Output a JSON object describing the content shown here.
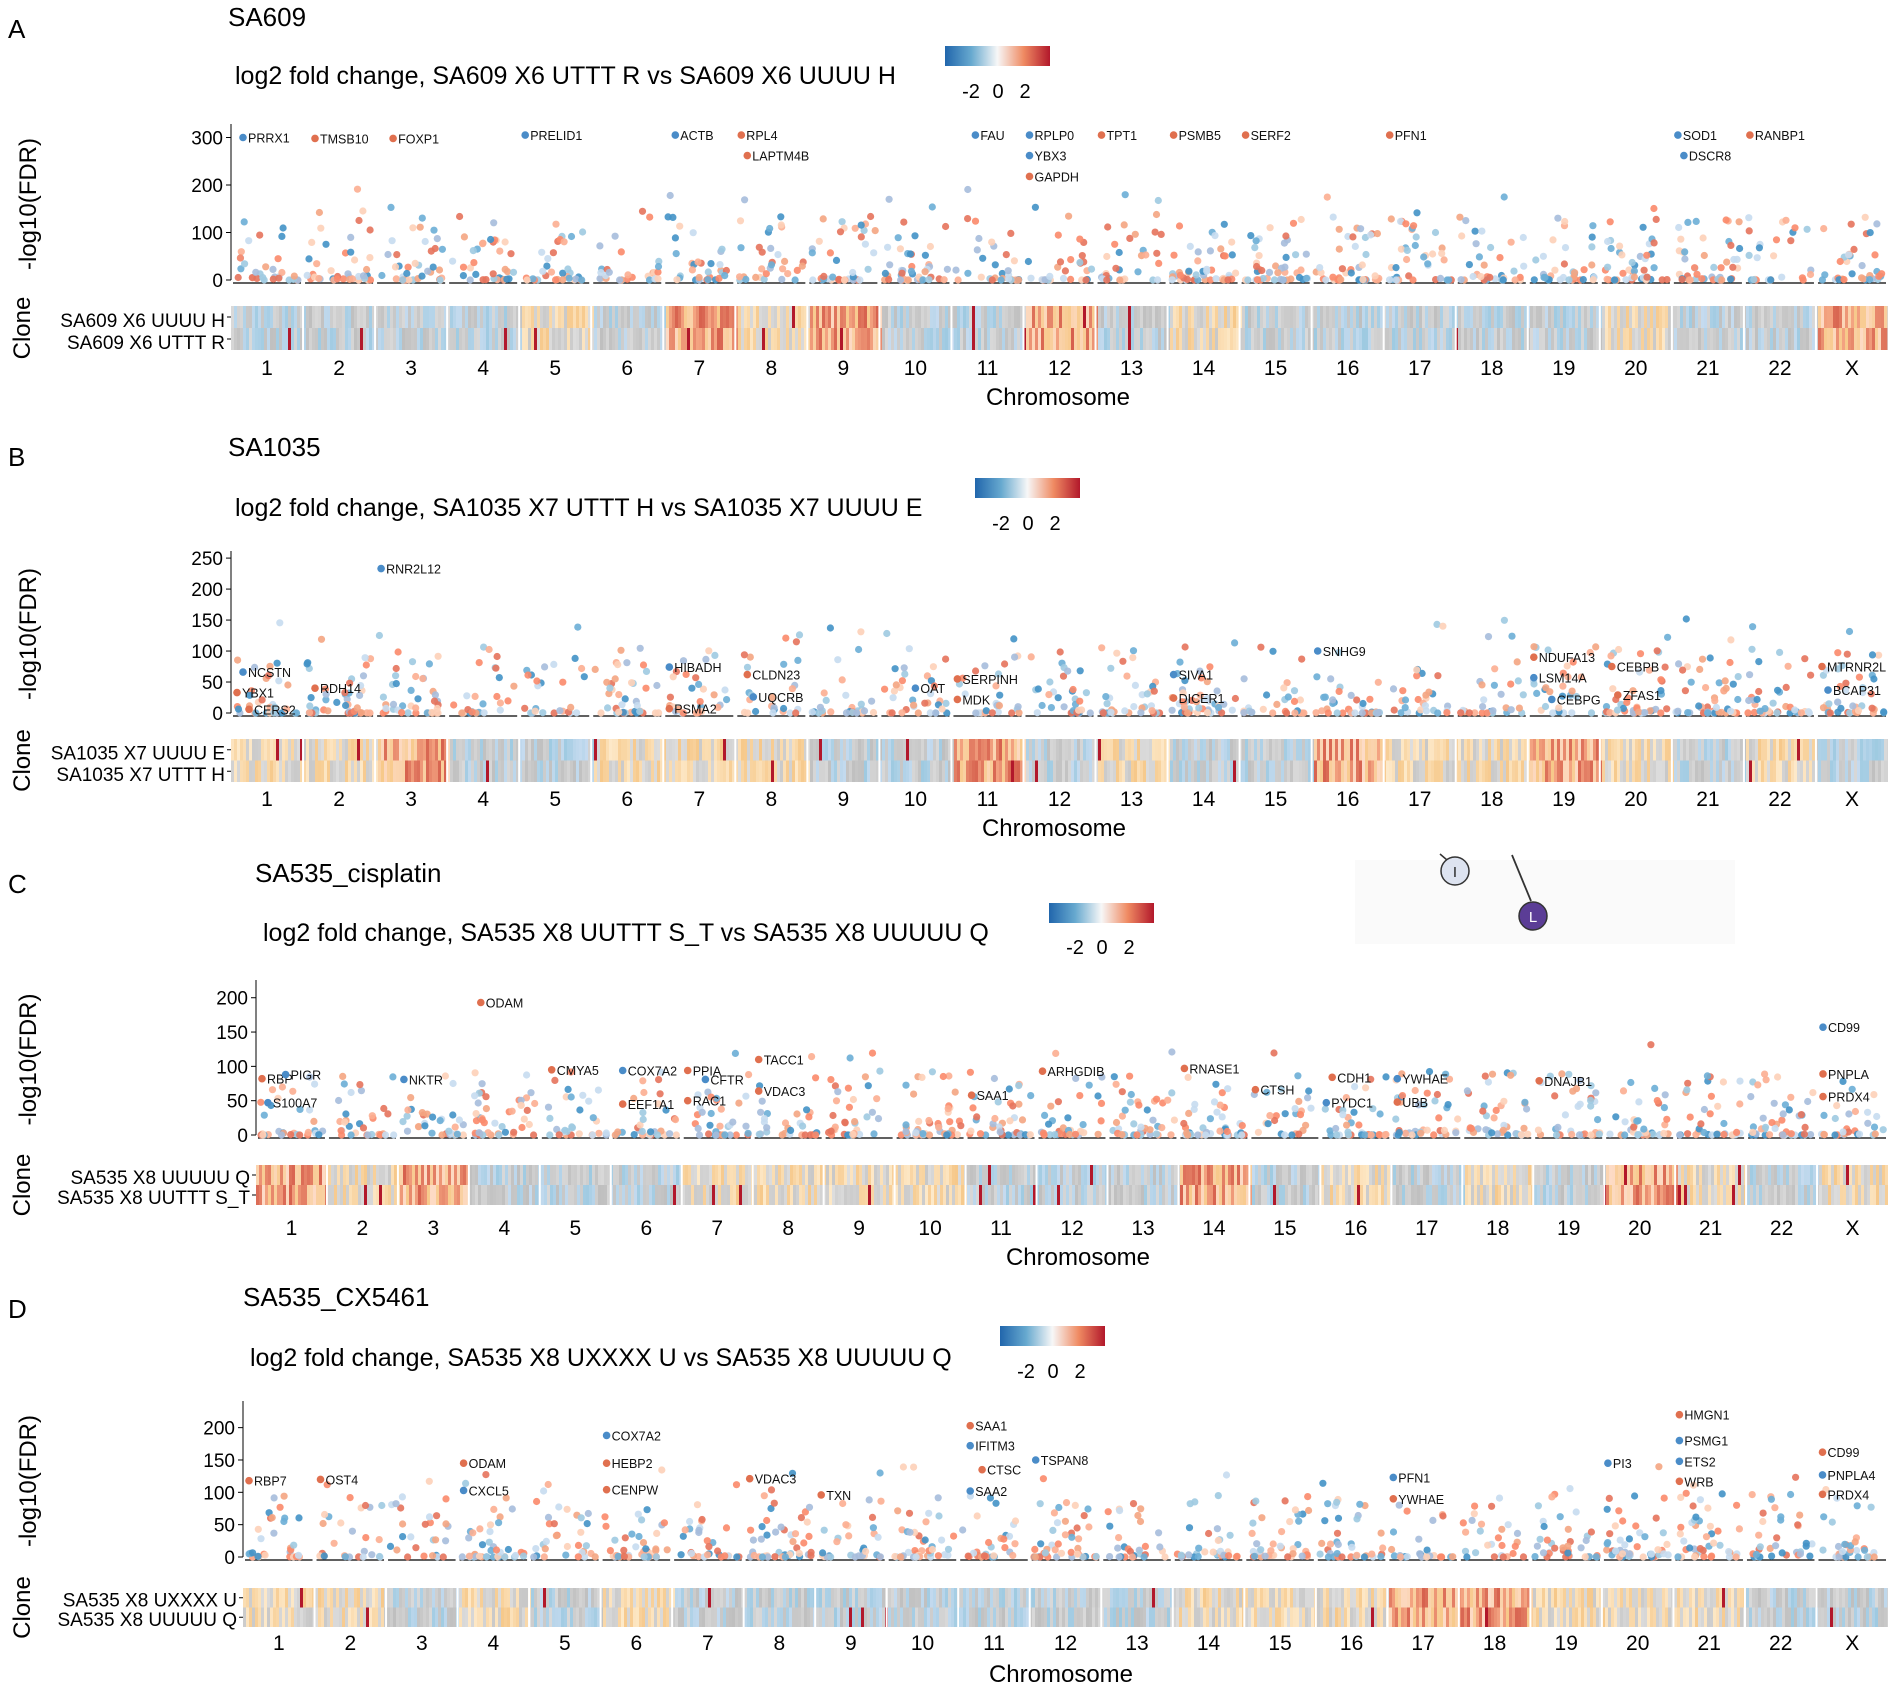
{
  "chart_data": [
    {
      "type": "scatter",
      "panel": "A",
      "title": "SA609",
      "subtitle": "log2 fold change, SA609 X6 UTTT R vs SA609 X6 UUUU H",
      "legend_ticks": [
        "-2",
        "0",
        "2"
      ],
      "ylabel": "-log10(FDR)",
      "yticks": [
        0,
        100,
        200,
        300
      ],
      "ylim": [
        0,
        320
      ],
      "xlabel": "Chromosome",
      "clone_ylabel": "Clone",
      "clones": [
        "SA609 X6 UUUU H",
        "SA609 X6 UTTT R"
      ],
      "chromosomes": [
        "1",
        "2",
        "3",
        "4",
        "5",
        "6",
        "7",
        "8",
        "9",
        "10",
        "11",
        "12",
        "13",
        "14",
        "15",
        "16",
        "17",
        "18",
        "19",
        "20",
        "21",
        "22",
        "X"
      ],
      "labels": [
        {
          "text": "PRRX1",
          "chr": 1,
          "pos": 0.1,
          "y": 300
        },
        {
          "text": "TMSB10",
          "chr": 2,
          "pos": 0.1,
          "y": 298
        },
        {
          "text": "FOXP1",
          "chr": 3,
          "pos": 0.2,
          "y": 298
        },
        {
          "text": "PRELID1",
          "chr": 5,
          "pos": 0.0,
          "y": 305
        },
        {
          "text": "ACTB",
          "chr": 7,
          "pos": 0.1,
          "y": 305
        },
        {
          "text": "RPL4",
          "chr": 8,
          "pos": 0.0,
          "y": 305
        },
        {
          "text": "LAPTM4B",
          "chr": 8,
          "pos": 0.1,
          "y": 262
        },
        {
          "text": "FAU",
          "chr": 11,
          "pos": 0.3,
          "y": 305
        },
        {
          "text": "RPLP0",
          "chr": 12,
          "pos": 0.0,
          "y": 305
        },
        {
          "text": "YBX3",
          "chr": 12,
          "pos": 0.0,
          "y": 262
        },
        {
          "text": "GAPDH",
          "chr": 12,
          "pos": 0.0,
          "y": 218
        },
        {
          "text": "TPT1",
          "chr": 13,
          "pos": 0.0,
          "y": 305
        },
        {
          "text": "PSMB5",
          "chr": 14,
          "pos": 0.0,
          "y": 305
        },
        {
          "text": "SERF2",
          "chr": 15,
          "pos": 0.0,
          "y": 305
        },
        {
          "text": "PFN1",
          "chr": 17,
          "pos": 0.0,
          "y": 305
        },
        {
          "text": "SOD1",
          "chr": 21,
          "pos": 0.0,
          "y": 305
        },
        {
          "text": "DSCR8",
          "chr": 21,
          "pos": 0.1,
          "y": 262
        },
        {
          "text": "RANBP1",
          "chr": 22,
          "pos": 0.0,
          "y": 305
        }
      ]
    },
    {
      "type": "scatter",
      "panel": "B",
      "title": "SA1035",
      "subtitle": "log2 fold change, SA1035 X7 UTTT H vs SA1035 X7 UUUU E",
      "legend_ticks": [
        "-2",
        "0",
        "2"
      ],
      "ylabel": "-log10(FDR)",
      "yticks": [
        0,
        50,
        100,
        150,
        200,
        250
      ],
      "ylim": [
        0,
        255
      ],
      "xlabel": "Chromosome",
      "clone_ylabel": "Clone",
      "clones": [
        "SA1035 X7 UUUU E",
        "SA1035 X7 UTTT H"
      ],
      "chromosomes": [
        "1",
        "2",
        "3",
        "4",
        "5",
        "6",
        "7",
        "8",
        "9",
        "10",
        "11",
        "12",
        "13",
        "14",
        "15",
        "16",
        "17",
        "18",
        "19",
        "20",
        "21",
        "22",
        "X"
      ],
      "labels": [
        {
          "text": "RNR2L12",
          "chr": 3,
          "pos": 0.0,
          "y": 233
        },
        {
          "text": "NCSTN",
          "chr": 1,
          "pos": 0.1,
          "y": 66
        },
        {
          "text": "YBX1",
          "chr": 1,
          "pos": 0.0,
          "y": 33
        },
        {
          "text": "CERS2",
          "chr": 1,
          "pos": 0.2,
          "y": 6
        },
        {
          "text": "RDH14",
          "chr": 2,
          "pos": 0.1,
          "y": 40
        },
        {
          "text": "HIBADH",
          "chr": 7,
          "pos": 0.0,
          "y": 74
        },
        {
          "text": "PSMA2",
          "chr": 7,
          "pos": 0.0,
          "y": 7
        },
        {
          "text": "CLDN23",
          "chr": 8,
          "pos": 0.1,
          "y": 62
        },
        {
          "text": "UQCRB",
          "chr": 8,
          "pos": 0.2,
          "y": 26
        },
        {
          "text": "OAT",
          "chr": 10,
          "pos": 0.5,
          "y": 40
        },
        {
          "text": "SERPINH",
          "chr": 11,
          "pos": 0.0,
          "y": 55
        },
        {
          "text": "MDK",
          "chr": 11,
          "pos": 0.0,
          "y": 22
        },
        {
          "text": "SIVA1",
          "chr": 14,
          "pos": 0.0,
          "y": 62
        },
        {
          "text": "DICER1",
          "chr": 14,
          "pos": 0.0,
          "y": 24
        },
        {
          "text": "SNHG9",
          "chr": 16,
          "pos": 0.0,
          "y": 100
        },
        {
          "text": "NDUFA13",
          "chr": 19,
          "pos": 0.0,
          "y": 90
        },
        {
          "text": "LSM14A",
          "chr": 19,
          "pos": 0.0,
          "y": 57
        },
        {
          "text": "CEBPG",
          "chr": 19,
          "pos": 0.3,
          "y": 22
        },
        {
          "text": "CEBPB",
          "chr": 20,
          "pos": 0.1,
          "y": 75
        },
        {
          "text": "ZFAS1",
          "chr": 20,
          "pos": 0.2,
          "y": 29
        },
        {
          "text": "MTRNR2L",
          "chr": 23,
          "pos": 0.0,
          "y": 75
        },
        {
          "text": "BCAP31",
          "chr": 23,
          "pos": 0.1,
          "y": 37
        }
      ]
    },
    {
      "type": "scatter",
      "panel": "C",
      "title": "SA535_cisplatin",
      "subtitle": "log2 fold change, SA535 X8 UUTTT S_T vs SA535 X8 UUUUU Q",
      "legend_ticks": [
        "-2",
        "0",
        "2"
      ],
      "ylabel": "-log10(FDR)",
      "yticks": [
        0,
        50,
        100,
        150,
        200
      ],
      "ylim": [
        0,
        220
      ],
      "xlabel": "Chromosome",
      "clone_ylabel": "Clone",
      "clones": [
        "SA535 X8 UUUUU Q",
        "SA535 X8 UUTTT S_T"
      ],
      "chromosomes": [
        "1",
        "2",
        "3",
        "4",
        "5",
        "6",
        "7",
        "8",
        "9",
        "10",
        "11",
        "12",
        "13",
        "14",
        "15",
        "16",
        "17",
        "18",
        "19",
        "20",
        "21",
        "22",
        "X"
      ],
      "extra_markers": [
        "I",
        "L"
      ],
      "labels": [
        {
          "text": "ODAM",
          "chr": 4,
          "pos": 0.1,
          "y": 193
        },
        {
          "text": "RBP",
          "chr": 1,
          "pos": 0.0,
          "y": 82
        },
        {
          "text": "PIGR",
          "chr": 1,
          "pos": 0.4,
          "y": 88
        },
        {
          "text": "S100A7",
          "chr": 1,
          "pos": 0.1,
          "y": 47
        },
        {
          "text": "NKTR",
          "chr": 3,
          "pos": 0.0,
          "y": 81
        },
        {
          "text": "CMYA5",
          "chr": 5,
          "pos": 0.1,
          "y": 95
        },
        {
          "text": "COX7A2",
          "chr": 6,
          "pos": 0.1,
          "y": 94
        },
        {
          "text": "EEF1A1",
          "chr": 6,
          "pos": 0.1,
          "y": 45
        },
        {
          "text": "PPIA",
          "chr": 7,
          "pos": 0.0,
          "y": 94
        },
        {
          "text": "CFTR",
          "chr": 7,
          "pos": 0.3,
          "y": 81
        },
        {
          "text": "RAC1",
          "chr": 7,
          "pos": 0.0,
          "y": 50
        },
        {
          "text": "TACC1",
          "chr": 8,
          "pos": 0.0,
          "y": 110
        },
        {
          "text": "VDAC3",
          "chr": 8,
          "pos": 0.0,
          "y": 64
        },
        {
          "text": "SAA1",
          "chr": 11,
          "pos": 0.0,
          "y": 58
        },
        {
          "text": "ARHGDIB",
          "chr": 12,
          "pos": 0.0,
          "y": 93
        },
        {
          "text": "RNASE1",
          "chr": 14,
          "pos": 0.0,
          "y": 97
        },
        {
          "text": "CTSH",
          "chr": 15,
          "pos": 0.0,
          "y": 66
        },
        {
          "text": "CDH1",
          "chr": 16,
          "pos": 0.1,
          "y": 84
        },
        {
          "text": "PYDC1",
          "chr": 16,
          "pos": 0.0,
          "y": 47
        },
        {
          "text": "YWHAE",
          "chr": 17,
          "pos": 0.0,
          "y": 82
        },
        {
          "text": "UBB",
          "chr": 17,
          "pos": 0.0,
          "y": 48
        },
        {
          "text": "DNAJB1",
          "chr": 19,
          "pos": 0.0,
          "y": 79
        },
        {
          "text": "CD99",
          "chr": 23,
          "pos": 0.0,
          "y": 157
        },
        {
          "text": "PNPLA",
          "chr": 23,
          "pos": 0.0,
          "y": 89
        },
        {
          "text": "PRDX4",
          "chr": 23,
          "pos": 0.0,
          "y": 56
        }
      ]
    },
    {
      "type": "scatter",
      "panel": "D",
      "title": "SA535_CX5461",
      "subtitle": "log2 fold change, SA535 X8 UXXXX U vs SA535 X8 UUUUU Q",
      "legend_ticks": [
        "-2",
        "0",
        "2"
      ],
      "ylabel": "-log10(FDR)",
      "yticks": [
        0,
        50,
        100,
        150,
        200
      ],
      "ylim": [
        0,
        235
      ],
      "xlabel": "Chromosome",
      "clone_ylabel": "Clone",
      "clones": [
        "SA535 X8 UXXXX U",
        "SA535 X8 UUUUU Q"
      ],
      "chromosomes": [
        "1",
        "2",
        "3",
        "4",
        "5",
        "6",
        "7",
        "8",
        "9",
        "10",
        "11",
        "12",
        "13",
        "14",
        "15",
        "16",
        "17",
        "18",
        "19",
        "20",
        "21",
        "22",
        "X"
      ],
      "labels": [
        {
          "text": "RBP7",
          "chr": 1,
          "pos": 0.0,
          "y": 118
        },
        {
          "text": "OST4",
          "chr": 2,
          "pos": 0.0,
          "y": 120
        },
        {
          "text": "ODAM",
          "chr": 4,
          "pos": 0.0,
          "y": 145
        },
        {
          "text": "CXCL5",
          "chr": 4,
          "pos": 0.0,
          "y": 103
        },
        {
          "text": "COX7A2",
          "chr": 6,
          "pos": 0.0,
          "y": 188
        },
        {
          "text": "HEBP2",
          "chr": 6,
          "pos": 0.0,
          "y": 145
        },
        {
          "text": "CENPW",
          "chr": 6,
          "pos": 0.0,
          "y": 104
        },
        {
          "text": "VDAC3",
          "chr": 8,
          "pos": 0.0,
          "y": 121
        },
        {
          "text": "TXN",
          "chr": 9,
          "pos": 0.0,
          "y": 96
        },
        {
          "text": "SAA1",
          "chr": 11,
          "pos": 0.1,
          "y": 203
        },
        {
          "text": "IFITM3",
          "chr": 11,
          "pos": 0.1,
          "y": 172
        },
        {
          "text": "CTSC",
          "chr": 11,
          "pos": 0.3,
          "y": 135
        },
        {
          "text": "SAA2",
          "chr": 11,
          "pos": 0.1,
          "y": 102
        },
        {
          "text": "TSPAN8",
          "chr": 12,
          "pos": 0.0,
          "y": 150
        },
        {
          "text": "PFN1",
          "chr": 17,
          "pos": 0.0,
          "y": 123
        },
        {
          "text": "YWHAE",
          "chr": 17,
          "pos": 0.0,
          "y": 90
        },
        {
          "text": "PI3",
          "chr": 20,
          "pos": 0.0,
          "y": 145
        },
        {
          "text": "HMGN1",
          "chr": 21,
          "pos": 0.0,
          "y": 220
        },
        {
          "text": "PSMG1",
          "chr": 21,
          "pos": 0.0,
          "y": 180
        },
        {
          "text": "ETS2",
          "chr": 21,
          "pos": 0.0,
          "y": 148
        },
        {
          "text": "WRB",
          "chr": 21,
          "pos": 0.0,
          "y": 117
        },
        {
          "text": "CD99",
          "chr": 23,
          "pos": 0.0,
          "y": 162
        },
        {
          "text": "PNPLA4",
          "chr": 23,
          "pos": 0.0,
          "y": 127
        },
        {
          "text": "PRDX4",
          "chr": 23,
          "pos": 0.0,
          "y": 97
        }
      ]
    }
  ]
}
